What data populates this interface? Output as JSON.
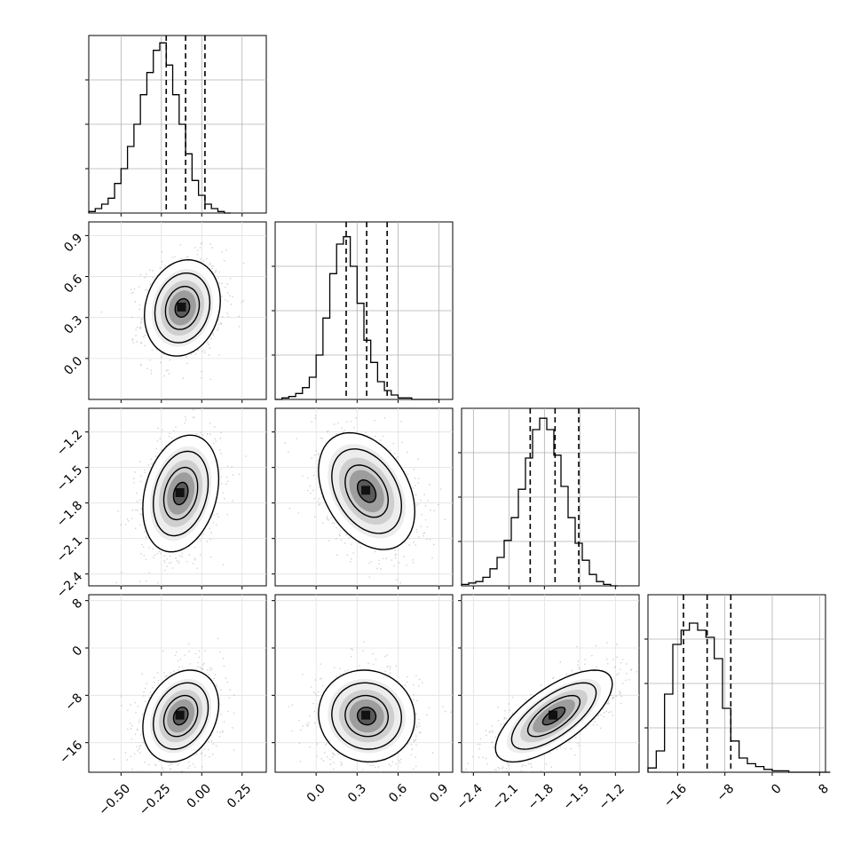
{
  "chart_data": {
    "type": "corner",
    "grid": true,
    "parameters": [
      {
        "range": [
          -0.7,
          0.4
        ],
        "ticks": [
          "−0.50",
          "−0.25",
          "0.00",
          "0.25"
        ],
        "tick_values": [
          -0.5,
          -0.25,
          0.0,
          0.25
        ],
        "quantiles": [
          -0.22,
          -0.1,
          0.02
        ]
      },
      {
        "range": [
          -0.3,
          1.0
        ],
        "ticks": [
          "0.0",
          "0.3",
          "0.6",
          "0.9"
        ],
        "tick_values": [
          0.0,
          0.3,
          0.6,
          0.9
        ],
        "quantiles": [
          0.22,
          0.37,
          0.52
        ]
      },
      {
        "range": [
          -2.5,
          -1.0
        ],
        "ticks": [
          "−2.4",
          "−2.1",
          "−1.8",
          "−1.5",
          "−1.2"
        ],
        "tick_values": [
          -2.4,
          -2.1,
          -1.8,
          -1.5,
          -1.2
        ],
        "quantiles": [
          -1.92,
          -1.71,
          -1.51
        ]
      },
      {
        "range": [
          -21,
          9
        ],
        "ticks": [
          "−16",
          "−8",
          "0",
          "8"
        ],
        "tick_values": [
          -16,
          -8,
          0,
          8
        ],
        "quantiles": [
          -15,
          -11,
          -7
        ]
      }
    ],
    "histograms": [
      {
        "bin_edges_start": -0.7,
        "bin_width": 0.04,
        "counts": [
          1,
          3,
          6,
          10,
          20,
          30,
          45,
          60,
          80,
          95,
          110,
          115,
          100,
          80,
          60,
          40,
          22,
          12,
          6,
          3,
          1,
          0
        ],
        "ylim": [
          0,
          120
        ]
      },
      {
        "bin_edges_start": -0.3,
        "bin_width": 0.05,
        "counts": [
          0,
          1,
          2,
          4,
          8,
          15,
          30,
          55,
          85,
          105,
          110,
          90,
          65,
          40,
          25,
          12,
          6,
          3,
          1,
          1,
          0,
          0,
          0,
          0
        ],
        "ylim": [
          0,
          120
        ]
      },
      {
        "bin_edges_start": -2.5,
        "bin_width": 0.06,
        "counts": [
          1,
          2,
          3,
          6,
          12,
          20,
          32,
          48,
          68,
          90,
          110,
          118,
          110,
          92,
          70,
          48,
          30,
          18,
          8,
          3,
          1,
          0
        ],
        "ylim": [
          0,
          125
        ]
      },
      {
        "bin_edges_start": -21,
        "bin_width": 1.4,
        "counts": [
          3,
          15,
          55,
          90,
          100,
          105,
          100,
          95,
          80,
          45,
          22,
          10,
          6,
          4,
          2,
          1,
          1,
          0,
          0,
          0,
          0,
          0
        ],
        "ylim": [
          0,
          125
        ]
      }
    ],
    "pairs": [
      {
        "row": 1,
        "col": 0,
        "center": [
          -0.12,
          0.37
        ],
        "sigma": [
          0.1,
          0.15
        ],
        "rho": 0.15
      },
      {
        "row": 2,
        "col": 0,
        "center": [
          -0.13,
          -1.72
        ],
        "sigma": [
          0.1,
          0.21
        ],
        "rho": 0.25
      },
      {
        "row": 2,
        "col": 1,
        "center": [
          0.37,
          -1.7
        ],
        "sigma": [
          0.15,
          0.21
        ],
        "rho": -0.35
      },
      {
        "row": 3,
        "col": 0,
        "center": [
          -0.13,
          -11.5
        ],
        "sigma": [
          0.1,
          3.3
        ],
        "rho": 0.25
      },
      {
        "row": 3,
        "col": 1,
        "center": [
          0.37,
          -11.5
        ],
        "sigma": [
          0.15,
          3.3
        ],
        "rho": -0.05
      },
      {
        "row": 3,
        "col": 2,
        "center": [
          -1.72,
          -11.5
        ],
        "sigma": [
          0.21,
          3.3
        ],
        "rho": 0.7
      }
    ]
  }
}
